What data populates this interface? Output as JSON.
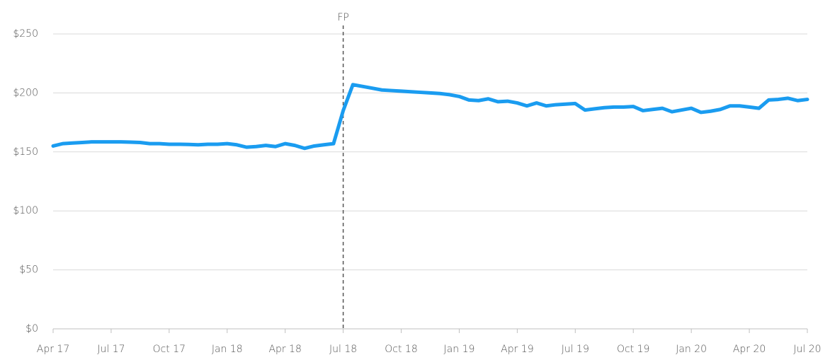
{
  "chart_data": {
    "type": "line",
    "categories": [
      "Apr 17",
      null,
      null,
      null,
      null,
      null,
      "Jul 17",
      null,
      null,
      null,
      null,
      null,
      "Oct 17",
      null,
      null,
      null,
      null,
      null,
      "Jan 18",
      null,
      null,
      null,
      null,
      null,
      "Apr 18",
      null,
      null,
      null,
      null,
      null,
      "Jul 18",
      null,
      null,
      null,
      null,
      null,
      "Oct 18",
      null,
      null,
      null,
      null,
      null,
      "Jan 19",
      null,
      null,
      null,
      null,
      null,
      "Apr 19",
      null,
      null,
      null,
      null,
      null,
      "Jul 19",
      null,
      null,
      null,
      null,
      null,
      "Oct 19",
      null,
      null,
      null,
      null,
      null,
      "Jan 20",
      null,
      null,
      null,
      null,
      null,
      "Apr 20",
      null,
      null,
      null,
      null,
      null,
      "Jul 20"
    ],
    "series": [
      {
        "color": "#1a9cf0",
        "values": [
          155,
          157,
          157.5,
          158,
          158.5,
          158.5,
          158.5,
          158.5,
          158.3,
          158,
          157,
          157,
          156.5,
          156.5,
          156.3,
          156,
          156.5,
          156.5,
          157,
          156,
          154,
          154.5,
          155.5,
          154.5,
          157,
          155.5,
          153,
          155,
          156,
          157,
          185,
          207,
          205.5,
          204,
          202.5,
          202,
          201.5,
          201,
          200.5,
          200,
          199.5,
          198.5,
          197,
          194,
          193.5,
          195,
          192.5,
          193,
          191.5,
          189,
          191.5,
          189,
          190,
          190.5,
          191,
          185.5,
          186.5,
          187.5,
          188,
          188,
          188.5,
          185,
          186,
          187,
          184,
          185.5,
          187,
          183.5,
          184.5,
          186,
          189,
          189,
          188,
          187,
          194,
          194.5,
          195.5,
          193.5,
          194.5
        ]
      }
    ],
    "ylim": [
      0,
      250
    ],
    "yticks": [
      {
        "value": 0,
        "label": "$0"
      },
      {
        "value": 50,
        "label": "$50"
      },
      {
        "value": 100,
        "label": "$100"
      },
      {
        "value": 150,
        "label": "$150"
      },
      {
        "value": 200,
        "label": "$200"
      },
      {
        "value": 250,
        "label": "$250"
      }
    ],
    "grid": true,
    "annotations": [
      {
        "text": "FP",
        "at": "Jul 18"
      }
    ]
  }
}
